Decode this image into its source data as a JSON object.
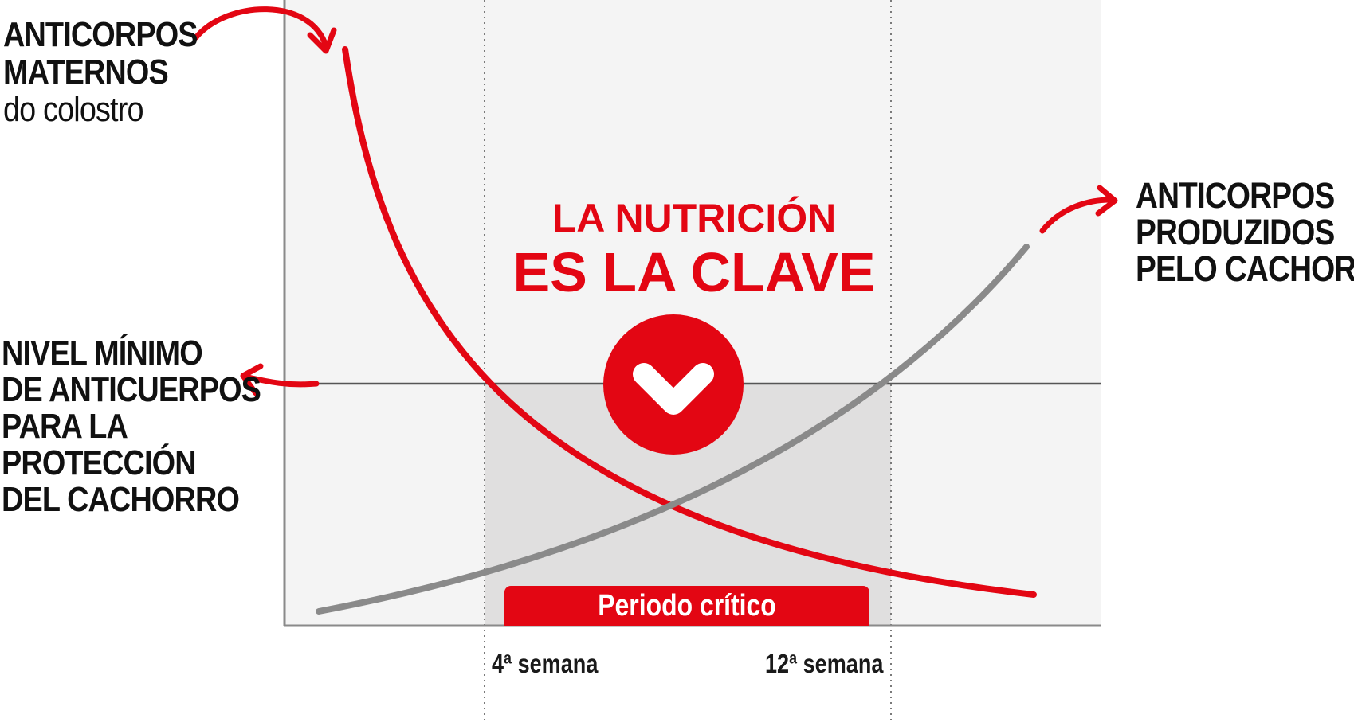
{
  "labels": {
    "maternal": [
      "ANTICORPOS",
      "MATERNOS"
    ],
    "maternal_sub": "do colostro",
    "minimum": [
      "NIVEL MÍNIMO",
      "DE ANTICUERPOS",
      "PARA LA",
      "PROTECCIÓN",
      "DEL CACHORRO"
    ],
    "produced": [
      "ANTICORPOS",
      "PRODUZIDOS",
      "PELO CACHORRO"
    ]
  },
  "headline": {
    "line1": "LA NUTRICIÓN",
    "line2": "ES LA CLAVE"
  },
  "critical_period": "Periodo crítico",
  "weeks": {
    "start": "4ª semana",
    "end": "12ª semana"
  },
  "icons": {
    "badge": "chevron-down-icon",
    "arrows": "curved-arrow-icon"
  },
  "colors": {
    "accent_red": "#e30613",
    "production_gray": "#8a8a8a",
    "panel_bg": "#f4f4f4",
    "critical_zone": "#e0dfdf",
    "text": "#111111"
  }
}
